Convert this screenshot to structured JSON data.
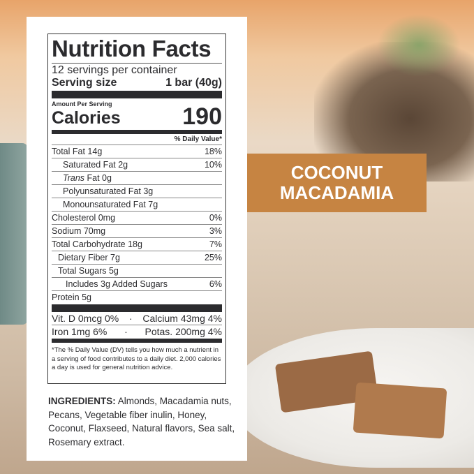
{
  "nutrition": {
    "title": "Nutrition Facts",
    "servings": "12 servings per container",
    "serving_size_label": "Serving size",
    "serving_size_value": "1 bar (40g)",
    "amount_per_serving": "Amount Per Serving",
    "calories_label": "Calories",
    "calories_value": "190",
    "daily_value_header": "% Daily Value*",
    "rows": [
      {
        "label": "Total Fat 14g",
        "dv": "18%"
      },
      {
        "label": "Saturated Fat 2g",
        "dv": "10%"
      },
      {
        "label_italic": "Trans",
        "label": " Fat 0g",
        "dv": ""
      },
      {
        "label": "Polyunsaturated Fat 3g",
        "dv": ""
      },
      {
        "label": "Monounsaturated Fat 7g",
        "dv": ""
      },
      {
        "label": "Cholesterol 0mg",
        "dv": "0%"
      },
      {
        "label": "Sodium 70mg",
        "dv": "3%"
      },
      {
        "label": "Total Carbohydrate 18g",
        "dv": "7%"
      },
      {
        "label": "Dietary Fiber 7g",
        "dv": "25%"
      },
      {
        "label": "Total Sugars 5g",
        "dv": ""
      },
      {
        "label": "Includes 3g Added Sugars",
        "dv": "6%"
      },
      {
        "label": "Protein 5g",
        "dv": ""
      }
    ],
    "vitamins": [
      {
        "left": "Vit. D 0mcg 0%",
        "sep": "·",
        "right": "Calcium 43mg 4%"
      },
      {
        "left": "Iron 1mg 6%",
        "sep": "·",
        "right": "Potas. 200mg 4%"
      }
    ],
    "footnote": "*The % Daily Value (DV) tells you how much a nutrient in a serving of food contributes to a daily diet. 2,000 calories a day is used for general nutrition advice."
  },
  "ingredients": {
    "label": "INGREDIENTS:",
    "text": " Almonds, Macadamia nuts, Pecans, Vegetable fiber inulin, Honey, Coconut, Flaxseed, Natural flavors, Sea salt, Rosemary extract."
  },
  "banner": {
    "line1": "COCONUT",
    "line2": "MACADAMIA",
    "color": "#c68442"
  }
}
